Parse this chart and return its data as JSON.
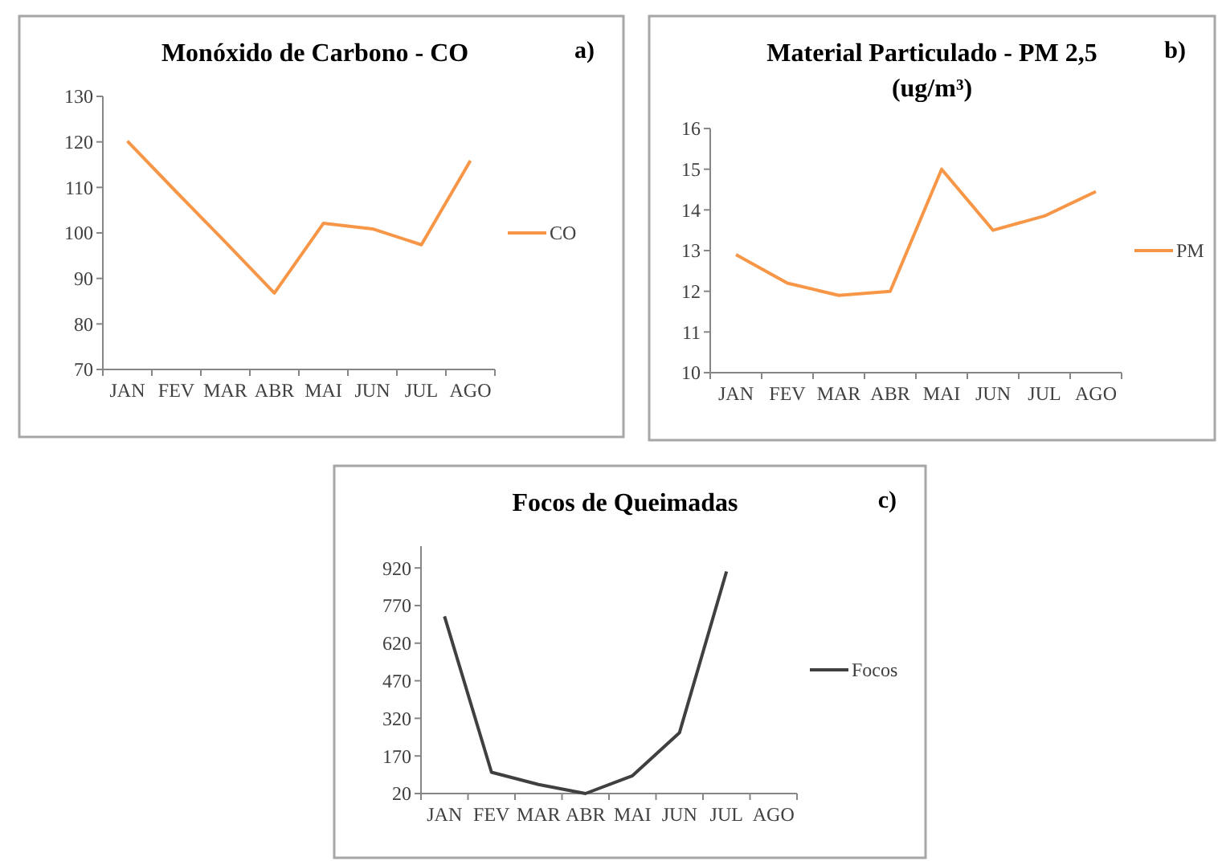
{
  "chart_data": [
    {
      "type": "line",
      "title": "Monóxido de Carbono - CO",
      "annotations": [
        "a)"
      ],
      "categories": [
        "JAN",
        "FEV",
        "MAR",
        "ABR",
        "MAI",
        "JUN",
        "JUL",
        "AGO"
      ],
      "series": [
        {
          "name": "CO",
          "color": "#f79646",
          "values": [
            120.2,
            109,
            98,
            86.8,
            102.1,
            100.9,
            97.4,
            115.9
          ]
        }
      ],
      "ylim": [
        70,
        130
      ],
      "yticks": [
        70,
        80,
        90,
        100,
        110,
        120,
        130
      ],
      "grid": false,
      "legend": "right",
      "marker": "none"
    },
    {
      "type": "line",
      "title": "Material Particulado - PM 2,5\n(ug/m³)",
      "annotations": [
        "b)"
      ],
      "categories": [
        "JAN",
        "FEV",
        "MAR",
        "ABR",
        "MAI",
        "JUN",
        "JUL",
        "AGO"
      ],
      "series": [
        {
          "name": "PM",
          "color": "#f79646",
          "values": [
            12.9,
            12.2,
            11.9,
            12.0,
            15.0,
            13.5,
            13.85,
            14.45
          ]
        }
      ],
      "ylim": [
        10,
        16
      ],
      "yticks": [
        10,
        11,
        12,
        13,
        14,
        15,
        16
      ],
      "grid": false,
      "legend": "right",
      "marker": "none"
    },
    {
      "type": "line",
      "title": "Focos de Queimadas",
      "annotations": [
        "c)"
      ],
      "categories": [
        "JAN",
        "FEV",
        "MAR",
        "ABR",
        "MAI",
        "JUN",
        "JUL",
        "AGO"
      ],
      "series": [
        {
          "name": "Focos",
          "color": "#404040",
          "values": [
            727,
            105,
            56,
            20,
            91,
            263,
            906,
            null
          ]
        }
      ],
      "ylim": [
        20,
        1007
      ],
      "yticks": [
        20,
        170,
        320,
        470,
        620,
        770,
        920
      ],
      "grid": false,
      "legend": "right",
      "marker": "none"
    }
  ]
}
